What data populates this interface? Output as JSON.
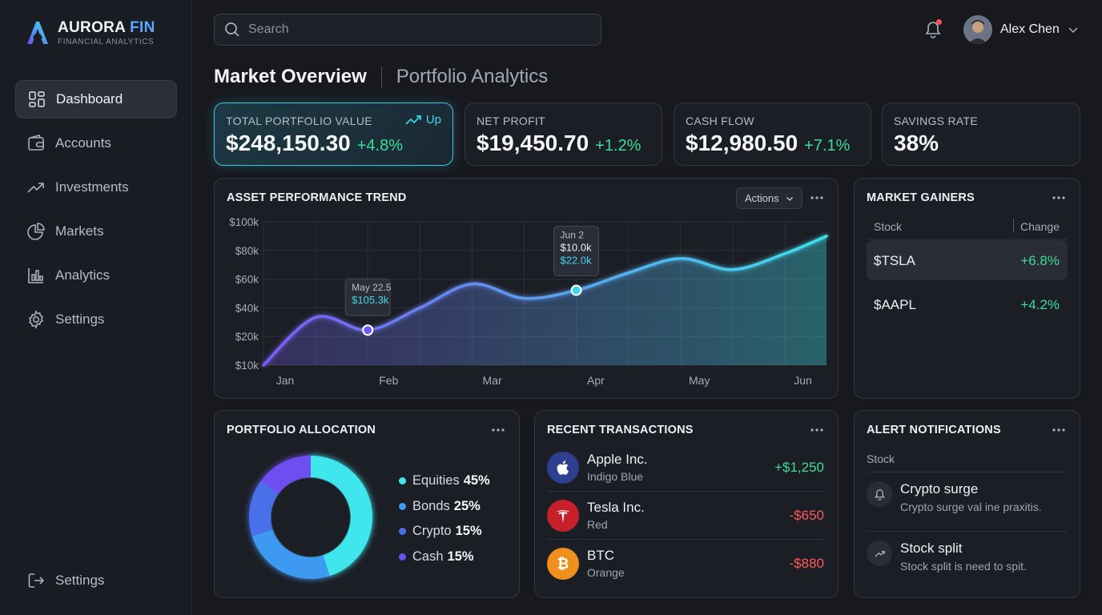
{
  "brand": {
    "name": "AURORA",
    "name_accent": "FIN",
    "subtitle": "FINANCIAL ANALYTICS"
  },
  "sidebar": {
    "items": [
      {
        "label": "Dashboard",
        "icon": "dashboard-grid-icon",
        "active": true
      },
      {
        "label": "Accounts",
        "icon": "wallet-icon"
      },
      {
        "label": "Investments",
        "icon": "trend-up-icon"
      },
      {
        "label": "Markets",
        "icon": "pie-chart-icon"
      },
      {
        "label": "Analytics",
        "icon": "bar-chart-icon"
      },
      {
        "label": "Settings",
        "icon": "gear-icon"
      }
    ],
    "bottom": {
      "label": "Settings",
      "icon": "logout-icon"
    }
  },
  "search": {
    "placeholder": "Search"
  },
  "user": {
    "name": "Alex Chen"
  },
  "header": {
    "title": "Market Overview",
    "subtitle": "Portfolio Analytics"
  },
  "stats": [
    {
      "label": "TOTAL PORTFOLIO VALUE",
      "value": "$248,150.30",
      "delta": "+4.8%",
      "trend": "Up"
    },
    {
      "label": "NET PROFIT",
      "value": "$19,450.70",
      "delta": "+1.2%"
    },
    {
      "label": "CASH FLOW",
      "value": "$12,980.50",
      "delta": "+7.1%"
    },
    {
      "label": "SAVINGS RATE",
      "value": "38%"
    }
  ],
  "performance": {
    "title": "ASSET PERFORMANCE TREND",
    "actions_label": "Actions",
    "tooltips": [
      {
        "date": "May 22.5",
        "value": "$105.3k"
      },
      {
        "date": "Jun 2",
        "value": "$10.0k",
        "value2": "$22.0k"
      }
    ]
  },
  "chart_data": {
    "type": "area",
    "x": [
      "Jan",
      "Feb",
      "Mar",
      "Apr",
      "May",
      "Jun"
    ],
    "yticks": [
      "$100k",
      "$80k",
      "$60k",
      "$40k",
      "$20k",
      "$10k"
    ],
    "ylim": [
      10,
      100
    ],
    "grid": true,
    "series": [
      {
        "x": [
          0,
          0.5,
          1,
          1.5,
          2,
          2.5,
          3,
          3.5,
          4,
          4.5,
          5,
          5.4
        ],
        "values": [
          10,
          40,
          32,
          46,
          61,
          52,
          57,
          68,
          77,
          70,
          80,
          91
        ]
      }
    ],
    "colors": [
      "#7b5cf5",
      "#3fe0ea"
    ]
  },
  "gainers": {
    "title": "MARKET GAINERS",
    "col_stock": "Stock",
    "col_change": "Change",
    "rows": [
      {
        "symbol": "$TSLA",
        "change": "+6.8%"
      },
      {
        "symbol": "$AAPL",
        "change": "+4.2%"
      }
    ]
  },
  "allocation": {
    "title": "PORTFOLIO ALLOCATION",
    "items": [
      {
        "label": "Equities",
        "pct": "45%",
        "value": 45,
        "color": "#3fe6ee"
      },
      {
        "label": "Bonds",
        "pct": "25%",
        "value": 25,
        "color": "#3d9af0"
      },
      {
        "label": "Crypto",
        "pct": "15%",
        "value": 15,
        "color": "#4a6fe8"
      },
      {
        "label": "Cash",
        "pct": "15%",
        "value": 15,
        "color": "#6d4ff0"
      }
    ]
  },
  "transactions": {
    "title": "RECENT TRANSACTIONS",
    "rows": [
      {
        "name": "Apple Inc.",
        "sub": "Indigo Blue",
        "amount": "+$1,250",
        "positive": true,
        "icon": "apple-logo-icon"
      },
      {
        "name": "Tesla Inc.",
        "sub": "Red",
        "amount": "-$650",
        "positive": false,
        "icon": "tesla-logo-icon"
      },
      {
        "name": "BTC",
        "sub": "Orange",
        "amount": "-$880",
        "positive": false,
        "icon": "bitcoin-icon"
      }
    ]
  },
  "alerts": {
    "title": "ALERT NOTIFICATIONS",
    "header": "Stock",
    "items": [
      {
        "title": "Crypto surge",
        "desc": "Crypto surge val ine praxitis.",
        "icon": "bell-icon"
      },
      {
        "title": "Stock split",
        "desc": "Stock split is need to spit.",
        "icon": "trend-up-icon"
      }
    ]
  },
  "colors": {
    "accent": "#3fc9e0",
    "positive": "#3ddc97",
    "negative": "#ff5a5a",
    "background": "#17191f"
  }
}
